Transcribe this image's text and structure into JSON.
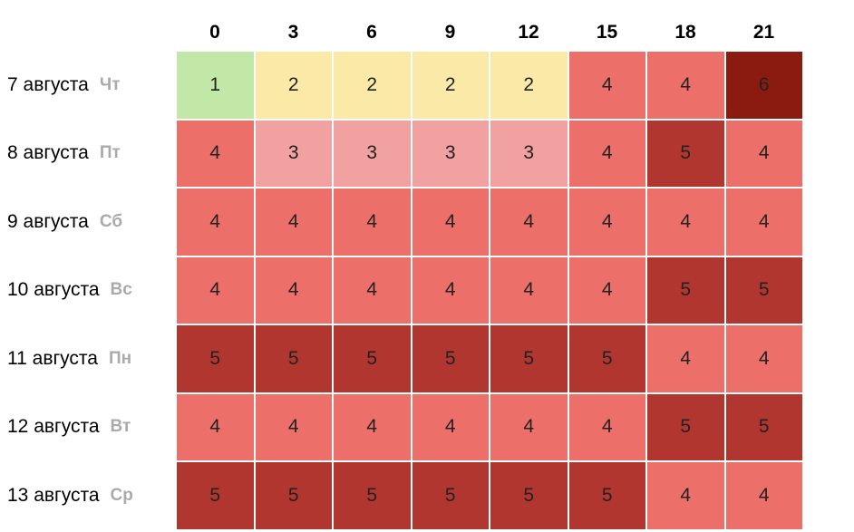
{
  "chart_data": {
    "type": "heatmap",
    "columns": [
      "0",
      "3",
      "6",
      "9",
      "12",
      "15",
      "18",
      "21"
    ],
    "rows": [
      {
        "date": "7 августа",
        "day": "Чт",
        "values": [
          1,
          2,
          2,
          2,
          2,
          4,
          4,
          6
        ]
      },
      {
        "date": "8 августа",
        "day": "Пт",
        "values": [
          4,
          3,
          3,
          3,
          3,
          4,
          5,
          4
        ]
      },
      {
        "date": "9 августа",
        "day": "Сб",
        "values": [
          4,
          4,
          4,
          4,
          4,
          4,
          4,
          4
        ]
      },
      {
        "date": "10 августа",
        "day": "Вс",
        "values": [
          4,
          4,
          4,
          4,
          4,
          4,
          5,
          5
        ]
      },
      {
        "date": "11 августа",
        "day": "Пн",
        "values": [
          5,
          5,
          5,
          5,
          5,
          5,
          4,
          4
        ]
      },
      {
        "date": "12 августа",
        "day": "Вт",
        "values": [
          4,
          4,
          4,
          4,
          4,
          4,
          5,
          5
        ]
      },
      {
        "date": "13 августа",
        "day": "Ср",
        "values": [
          5,
          5,
          5,
          5,
          5,
          5,
          4,
          4
        ]
      }
    ],
    "color_scale": {
      "1": "#c2e8a8",
      "2": "#fbeaa7",
      "3": "#f1a1a0",
      "4": "#ed6f6a",
      "5": "#b13630",
      "6": "#8b1a10"
    },
    "grid": false,
    "legend": "none"
  }
}
